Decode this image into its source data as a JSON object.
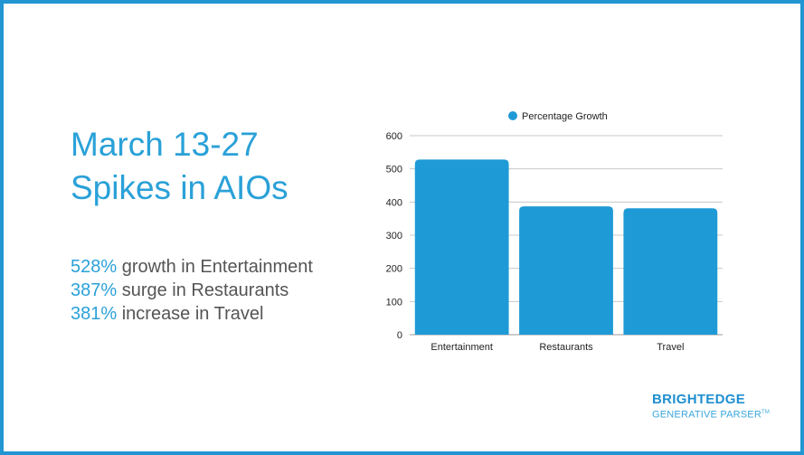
{
  "headline": {
    "line1": "March 13-27",
    "line2": "Spikes in AIOs"
  },
  "stats": [
    {
      "value": "528%",
      "text": " growth in Entertainment"
    },
    {
      "value": "387%",
      "text": " surge in Restaurants"
    },
    {
      "value": "381%",
      "text": " increase in Travel"
    }
  ],
  "logo": {
    "brand": "BRIGHTEDGE",
    "sub": "GENERATIVE PARSER",
    "tm": "TM"
  },
  "colors": {
    "accent": "#2aa1d8",
    "bar": "#1e9ad6",
    "border": "#2196d3"
  },
  "chart_data": {
    "type": "bar",
    "categories": [
      "Entertainment",
      "Restaurants",
      "Travel"
    ],
    "series": [
      {
        "name": "Percentage Growth",
        "values": [
          528,
          387,
          381
        ]
      }
    ],
    "ylim": [
      0,
      600
    ],
    "yticks": [
      0,
      100,
      200,
      300,
      400,
      500,
      600
    ],
    "legend": "top-center",
    "grid": true,
    "title": "",
    "xlabel": "",
    "ylabel": ""
  }
}
